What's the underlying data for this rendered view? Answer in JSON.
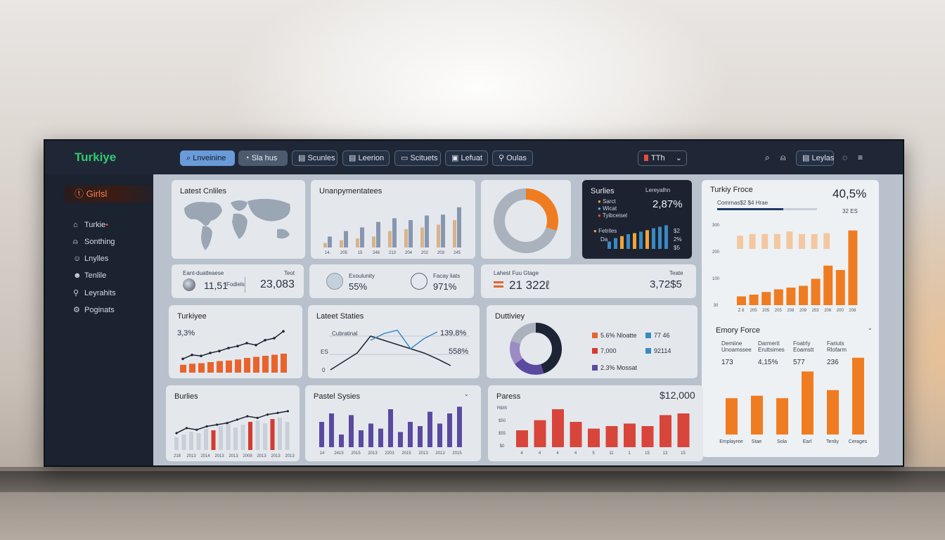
{
  "app": {
    "brand": "Turkiye"
  },
  "nav": {
    "items": [
      {
        "label": "Lnveinine",
        "icon": "search-icon"
      },
      {
        "label": "Sla hus",
        "icon": "chart-icon"
      },
      {
        "label": "Scunles",
        "icon": "card-icon"
      },
      {
        "label": "Leerion",
        "icon": "card-icon"
      },
      {
        "label": "Scituets",
        "icon": "card-icon"
      },
      {
        "label": "Lefuat",
        "icon": "doc-icon"
      },
      {
        "label": "Oulas",
        "icon": "link-icon"
      }
    ],
    "language": "TTh",
    "account_label": "Leylas"
  },
  "sidebar": {
    "active": "Girlsl",
    "items": [
      {
        "label": "Turkie",
        "icon": "home-icon"
      },
      {
        "label": "Sonthing",
        "icon": "bell-icon"
      },
      {
        "label": "Lnylles",
        "icon": "user-icon"
      },
      {
        "label": "Tenlile",
        "icon": "smile-icon"
      },
      {
        "label": "Leyrahits",
        "icon": "pin-icon"
      },
      {
        "label": "Poginats",
        "icon": "settings-icon"
      }
    ]
  },
  "cards": {
    "latest_cnliles": {
      "title": "Latest Cnliles"
    },
    "unanpym": {
      "title": "Unanpymentatees",
      "ticks": [
        "14.",
        "205",
        "15",
        "248",
        "213",
        "204",
        "202",
        "203",
        "245"
      ]
    },
    "donut1": {},
    "series": {
      "title": "Surlies",
      "label": "Lereyalhn",
      "value": "2,87%",
      "legend": [
        "Sarct",
        "Wicat",
        "Tyibceisel"
      ],
      "note": "Fetriles",
      "note2": "Da",
      "axis": [
        "$2",
        "2%",
        "$5"
      ]
    },
    "turkiy_force": {
      "title": "Turkiy Froce",
      "value": "40,5%",
      "sub1": "Comrnas$2 $4 Hrae",
      "sub2": "32 ES",
      "ticks_y": [
        "300",
        "200",
        "100",
        "30"
      ],
      "ticks_x": [
        "Z 8",
        "205",
        "205",
        "205",
        "208",
        "209",
        "253",
        "206",
        "200",
        "208"
      ]
    },
    "kpi1": {
      "label": "Eant-duatleaese",
      "sublabel": "Teot",
      "a": "11,51",
      "b": "Fodiels",
      "c": "23,083"
    },
    "kpi2": {
      "label": "Exoulunity",
      "a": "55%",
      "label2": "Facay liats",
      "b": "971%"
    },
    "kpi3": {
      "label": "Lahest Fuu Gtage",
      "sublabel": "Teate",
      "a": "21 322ℓ",
      "b": "3,72$5"
    },
    "turkiyee": {
      "title": "Turkiyee",
      "value": "3,3%"
    },
    "latest_staties": {
      "title": "Lateet Staties",
      "v1": "139,8%",
      "v2": "558%",
      "lab1": "Cubratinal",
      "lab2": "ES",
      "lab3": "0"
    },
    "duttiviey": {
      "title": "Duttiviey",
      "legend": [
        {
          "color": "#e8642c",
          "text": "5.6% Nloatte"
        },
        {
          "color": "#3a8ac2",
          "text": "77 46"
        },
        {
          "color": "#d43a2e",
          "text": "7,000"
        },
        {
          "color": "#3a8ac2",
          "text": "92114"
        },
        {
          "color": "#5a4aa0",
          "text": "2.3% Mossat"
        }
      ]
    },
    "emory_force": {
      "title": "Emory Force",
      "cols": [
        {
          "label": "Demiine Unoamssee",
          "value": "173"
        },
        {
          "label": "Darmerit Eruttsimes",
          "value": "4,15%"
        },
        {
          "label": "Foatrly Eoamstt",
          "value": "577"
        },
        {
          "label": "Fariuts Rlofarm",
          "value": "236"
        }
      ],
      "x": [
        "Emplayree",
        "Stae",
        "Sola",
        "Earl",
        "Tenliy",
        "Cerages"
      ]
    },
    "burlies": {
      "title": "Burlies",
      "ticks": [
        "218",
        "2013",
        "2014",
        "2013",
        "2013",
        "2008",
        "2013",
        "2013",
        "2013"
      ]
    },
    "pastel": {
      "title": "Pastel Sysies",
      "ticks": [
        "14",
        "2415",
        "2015",
        "2013",
        "2203",
        "2015",
        "2013",
        "2013",
        "2015"
      ]
    },
    "pares": {
      "title": "Paress",
      "value": "$12,000",
      "y": [
        "R$85",
        "$50",
        "$55",
        "$0"
      ],
      "x": [
        "4",
        "4",
        "4",
        "4",
        "5",
        "11",
        "1",
        "15",
        "13",
        "15"
      ]
    }
  },
  "chart_data": [
    {
      "type": "bar",
      "title": "Unanpymentatees",
      "series": [
        {
          "values": [
            5,
            8,
            10,
            12,
            18,
            20,
            22,
            25,
            30
          ]
        },
        {
          "values": [
            12,
            18,
            22,
            28,
            32,
            30,
            35,
            36,
            44
          ]
        }
      ]
    },
    {
      "type": "pie",
      "values": [
        30,
        70
      ],
      "colors": [
        "#f07c22",
        "#a9b2bd"
      ]
    },
    {
      "type": "bar",
      "title": "Surlies",
      "values": [
        15,
        22,
        26,
        30,
        32,
        35,
        38,
        42,
        45,
        48
      ]
    },
    {
      "type": "bar",
      "title": "Turkiy Froce",
      "categories": [
        "Z 8",
        "205",
        "205",
        "205",
        "208",
        "209",
        "253",
        "206",
        "200",
        "208"
      ],
      "series": [
        {
          "values": [
            10,
            12,
            15,
            18,
            20,
            22,
            30,
            45,
            40,
            85
          ]
        },
        {
          "values": [
            18,
            22,
            22,
            22,
            28,
            22,
            22,
            24,
            0,
            0
          ]
        }
      ]
    },
    {
      "type": "bar",
      "title": "Turkiyee",
      "values": [
        15,
        17,
        18,
        20,
        22,
        23,
        25,
        28,
        30,
        32,
        34,
        36
      ],
      "line": [
        14,
        18,
        17,
        20,
        22,
        25,
        27,
        30,
        28,
        33,
        35,
        42
      ]
    },
    {
      "type": "line",
      "title": "Lateet Staties",
      "series": [
        {
          "values": [
            5,
            15,
            25,
            45,
            40,
            35,
            30,
            25,
            18,
            10
          ]
        },
        {
          "values": [
            null,
            null,
            null,
            40,
            48,
            52,
            30,
            42,
            50,
            null
          ]
        }
      ]
    },
    {
      "type": "pie",
      "title": "Duttiviey",
      "values": [
        45,
        20,
        15,
        20
      ],
      "colors": [
        "#1d2433",
        "#5a4aa0",
        "#9c8bc4",
        "#a9b2bd"
      ]
    },
    {
      "type": "bar",
      "title": "Emory Force",
      "categories": [
        "Emplayree",
        "Stae",
        "Sola",
        "Earl",
        "Tenliy",
        "Cerages"
      ],
      "values": [
        45,
        48,
        45,
        78,
        55,
        95
      ]
    },
    {
      "type": "bar",
      "title": "Burlies",
      "values": [
        18,
        22,
        26,
        24,
        30,
        28,
        34,
        38,
        32,
        36,
        40,
        42,
        38,
        44,
        46,
        40
      ],
      "line": [
        20,
        26,
        24,
        28,
        30,
        32,
        36,
        40,
        38,
        42,
        44,
        46
      ]
    },
    {
      "type": "bar",
      "title": "Pastel Sysies",
      "values": [
        30,
        40,
        15,
        38,
        20,
        28,
        22,
        45,
        18,
        30,
        25,
        42,
        28,
        40,
        48
      ]
    },
    {
      "type": "bar",
      "title": "Paress",
      "values": [
        20,
        32,
        45,
        30,
        22,
        25,
        28,
        25,
        38,
        40
      ]
    }
  ]
}
